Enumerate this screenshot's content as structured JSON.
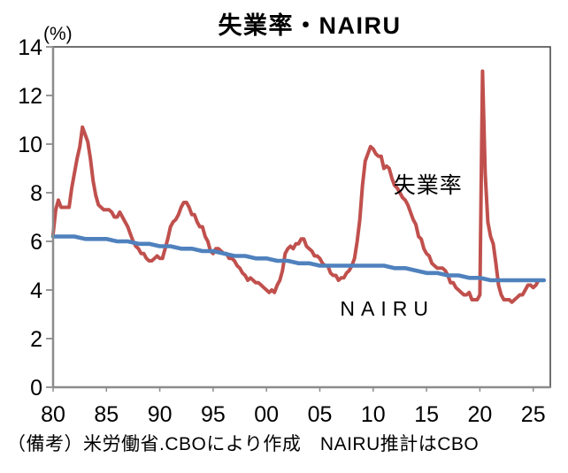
{
  "chart_data": {
    "type": "line",
    "title": "失業率・NAIRU",
    "unit_label": "(%)",
    "footnote": "（備考）米労働省.CBOにより作成　NAIRU推計はCBO",
    "xlim": [
      1980,
      2026.6
    ],
    "ylim": [
      0,
      14
    ],
    "grid": false,
    "legend_position": "on-chart-annotations",
    "axis_color": "#8C8C8C",
    "frame_color": "#404040",
    "text_color": "#000000",
    "y_ticks": [
      {
        "label": "0",
        "value": 0
      },
      {
        "label": "2",
        "value": 2
      },
      {
        "label": "4",
        "value": 4
      },
      {
        "label": "6",
        "value": 6
      },
      {
        "label": "8",
        "value": 8
      },
      {
        "label": "10",
        "value": 10
      },
      {
        "label": "12",
        "value": 12
      },
      {
        "label": "14",
        "value": 14
      }
    ],
    "x_ticks": [
      {
        "label": "80",
        "year": 1980
      },
      {
        "label": "85",
        "year": 1985
      },
      {
        "label": "90",
        "year": 1990
      },
      {
        "label": "95",
        "year": 1995
      },
      {
        "label": "00",
        "year": 2000
      },
      {
        "label": "05",
        "year": 2005
      },
      {
        "label": "10",
        "year": 2010
      },
      {
        "label": "15",
        "year": 2015
      },
      {
        "label": "20",
        "year": 2020
      },
      {
        "label": "25",
        "year": 2025
      }
    ],
    "series": [
      {
        "name": "失業率",
        "id": "unemployment-rate",
        "color": "#C0504D",
        "start_year": 1980,
        "step_years": 0.25,
        "values": [
          6.3,
          7.3,
          7.7,
          7.4,
          7.4,
          7.4,
          7.4,
          8.2,
          8.8,
          9.4,
          9.9,
          10.7,
          10.4,
          10.1,
          9.4,
          8.5,
          7.9,
          7.5,
          7.4,
          7.3,
          7.3,
          7.3,
          7.2,
          7.0,
          7.0,
          7.2,
          7.0,
          6.8,
          6.6,
          6.3,
          6.0,
          5.8,
          5.7,
          5.5,
          5.5,
          5.3,
          5.2,
          5.2,
          5.3,
          5.4,
          5.3,
          5.3,
          5.7,
          6.1,
          6.6,
          6.8,
          6.9,
          7.1,
          7.4,
          7.6,
          7.6,
          7.4,
          7.1,
          7.1,
          6.8,
          6.6,
          6.6,
          6.2,
          6.0,
          5.6,
          5.5,
          5.7,
          5.7,
          5.6,
          5.5,
          5.5,
          5.3,
          5.3,
          5.2,
          5.0,
          4.9,
          4.7,
          4.6,
          4.4,
          4.5,
          4.4,
          4.3,
          4.3,
          4.2,
          4.1,
          4.0,
          3.9,
          4.0,
          3.9,
          4.2,
          4.4,
          4.8,
          5.5,
          5.7,
          5.8,
          5.7,
          5.9,
          5.9,
          6.1,
          6.1,
          5.8,
          5.7,
          5.6,
          5.4,
          5.4,
          5.3,
          5.1,
          5.0,
          5.0,
          4.7,
          4.6,
          4.6,
          4.4,
          4.5,
          4.5,
          4.7,
          4.8,
          5.0,
          5.3,
          6.0,
          6.9,
          8.3,
          9.3,
          9.6,
          9.9,
          9.8,
          9.6,
          9.5,
          9.5,
          9.0,
          9.1,
          9.0,
          8.6,
          8.3,
          8.2,
          8.0,
          7.8,
          7.7,
          7.5,
          7.2,
          6.9,
          6.7,
          6.2,
          6.1,
          5.7,
          5.5,
          5.4,
          5.1,
          5.0,
          4.9,
          4.9,
          4.9,
          4.8,
          4.6,
          4.3,
          4.3,
          4.1,
          4.0,
          3.9,
          3.8,
          3.8,
          3.9,
          3.6,
          3.6,
          3.6,
          3.8,
          13.0,
          8.8,
          6.8,
          6.2,
          5.9,
          5.1,
          4.2,
          3.8,
          3.6,
          3.6,
          3.6,
          3.5,
          3.6,
          3.7,
          3.8,
          3.8,
          4.0,
          4.2,
          4.2,
          4.1,
          4.2,
          4.4
        ]
      },
      {
        "name": "NAIRU",
        "id": "nairu",
        "color": "#4F81BD",
        "start_year": 1980,
        "step_years": 1,
        "values": [
          6.2,
          6.2,
          6.2,
          6.1,
          6.1,
          6.1,
          6.0,
          6.0,
          5.9,
          5.9,
          5.8,
          5.8,
          5.7,
          5.7,
          5.6,
          5.6,
          5.5,
          5.4,
          5.4,
          5.3,
          5.3,
          5.2,
          5.2,
          5.1,
          5.1,
          5.0,
          5.0,
          5.0,
          5.0,
          5.0,
          5.0,
          5.0,
          4.9,
          4.9,
          4.8,
          4.7,
          4.7,
          4.6,
          4.6,
          4.5,
          4.5,
          4.4,
          4.4,
          4.4,
          4.4,
          4.4,
          4.4
        ]
      }
    ],
    "annotations": [
      {
        "text": "失業率",
        "year": 2011.9,
        "value": 8.0,
        "color": "#C0504D",
        "font_size": 25,
        "letter_spacing": 1
      },
      {
        "text": "NAIRU",
        "year": 2006.9,
        "value": 2.95,
        "color": "#4F81BD",
        "font_size": 23,
        "letter_spacing": 7
      }
    ]
  }
}
